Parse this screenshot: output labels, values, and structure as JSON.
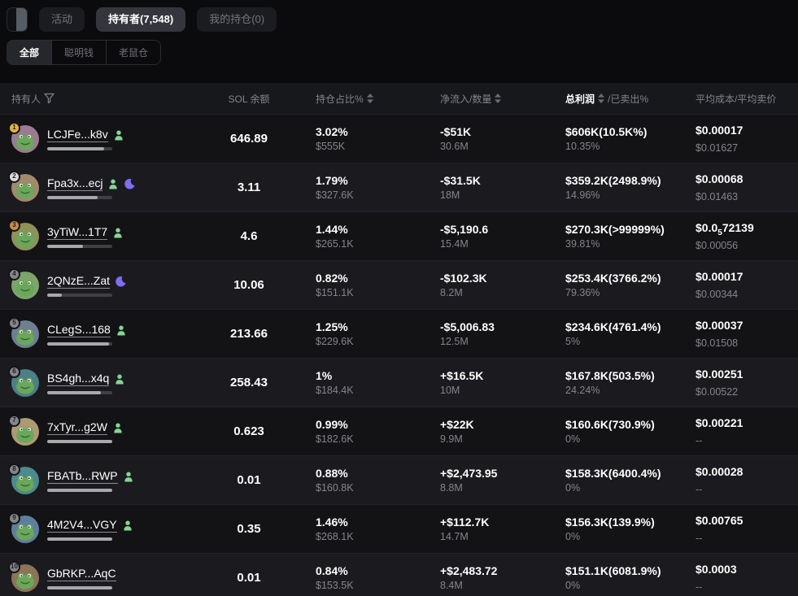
{
  "topbar": {
    "tabs": [
      {
        "label": "活动"
      },
      {
        "label": "持有者(7,548)"
      },
      {
        "label": "我的持仓(0)"
      }
    ]
  },
  "filters": {
    "items": [
      {
        "label": "全部"
      },
      {
        "label": "聪明钱"
      },
      {
        "label": "老鼠仓"
      }
    ]
  },
  "colors": {
    "accent_green": "#7bd38d",
    "accent_red": "#f2506e",
    "rank_gold": "#e8b33c",
    "rank_silver": "#d9dadd",
    "rank_bronze": "#c98a4b"
  },
  "icons": {
    "panel": "panel-toggle-icon",
    "filter": "funnel-icon",
    "sort": "sort-icon",
    "holder_tag": "person-icon",
    "night_tag": "moon-icon"
  },
  "table": {
    "headers": {
      "holder": "持有人",
      "sol_balance": "SOL 余额",
      "position_pct": "持仓占比%",
      "net_inflow": "净流入/数量",
      "profit": "总利润",
      "profit_suffix": "/已卖出%",
      "avg_cost": "平均成本/平均卖价"
    },
    "rows": [
      {
        "rank": "1",
        "address": "LCJFe...k8v",
        "icons": [
          "person-icon"
        ],
        "avatar_color": "#9b7b92",
        "bar": "88%",
        "sol": "646.89",
        "pct": "3.02%",
        "pct_usd": "$555K",
        "net": "-$51K",
        "amount": "30.6M",
        "profit": "$606K(10.5K%)",
        "sold": "10.35%",
        "cost_pre": "$0.00017",
        "cost_sub": "",
        "cost_tail": "",
        "avg_sell": "$0.01627"
      },
      {
        "rank": "2",
        "address": "Fpa3x...ecj",
        "icons": [
          "person-icon",
          "moon-icon"
        ],
        "avatar_color": "#a3886c",
        "bar": "78%",
        "sol": "3.11",
        "pct": "1.79%",
        "pct_usd": "$327.6K",
        "net": "-$31.5K",
        "amount": "18M",
        "profit": "$359.2K(2498.9%)",
        "sold": "14.96%",
        "cost_pre": "$0.00068",
        "cost_sub": "",
        "cost_tail": "",
        "avg_sell": "$0.01463"
      },
      {
        "rank": "3",
        "address": "3yTiW...1T7",
        "icons": [
          "person-icon"
        ],
        "avatar_color": "#8e9158",
        "bar": "55%",
        "sol": "4.6",
        "pct": "1.44%",
        "pct_usd": "$265.1K",
        "net": "-$5,190.6",
        "amount": "15.4M",
        "profit": "$270.3K(>99999%)",
        "sold": "39.81%",
        "cost_pre": "$0.0",
        "cost_sub": "5",
        "cost_tail": "72139",
        "avg_sell": "$0.00056"
      },
      {
        "rank": "4",
        "address": "2QNzE...Zat",
        "icons": [
          "moon-icon"
        ],
        "avatar_color": "#7da46b",
        "bar": "22%",
        "sol": "10.06",
        "pct": "0.82%",
        "pct_usd": "$151.1K",
        "net": "-$102.3K",
        "amount": "8.2M",
        "profit": "$253.4K(3766.2%)",
        "sold": "79.36%",
        "cost_pre": "$0.00017",
        "cost_sub": "",
        "cost_tail": "",
        "avg_sell": "$0.00344"
      },
      {
        "rank": "5",
        "address": "CLegS...168",
        "icons": [
          "person-icon"
        ],
        "avatar_color": "#6f7f92",
        "bar": "95%",
        "sol": "213.66",
        "pct": "1.25%",
        "pct_usd": "$229.6K",
        "net": "-$5,006.83",
        "amount": "12.5M",
        "profit": "$234.6K(4761.4%)",
        "sold": "5%",
        "cost_pre": "$0.00037",
        "cost_sub": "",
        "cost_tail": "",
        "avg_sell": "$0.01508"
      },
      {
        "rank": "6",
        "address": "BS4gh...x4q",
        "icons": [
          "person-icon"
        ],
        "avatar_color": "#4d7f86",
        "bar": "82%",
        "sol": "258.43",
        "pct": "1%",
        "pct_usd": "$184.4K",
        "net": "+$16.5K",
        "amount": "10M",
        "profit": "$167.8K(503.5%)",
        "sold": "24.24%",
        "cost_pre": "$0.00251",
        "cost_sub": "",
        "cost_tail": "",
        "avg_sell": "$0.00522"
      },
      {
        "rank": "7",
        "address": "7xTyr...g2W",
        "icons": [
          "person-icon"
        ],
        "avatar_color": "#ad9a74",
        "bar": "100%",
        "sol": "0.623",
        "pct": "0.99%",
        "pct_usd": "$182.6K",
        "net": "+$22K",
        "amount": "9.9M",
        "profit": "$160.6K(730.9%)",
        "sold": "0%",
        "cost_pre": "$0.00221",
        "cost_sub": "",
        "cost_tail": "",
        "avg_sell": "--"
      },
      {
        "rank": "8",
        "address": "FBATb...RWP",
        "icons": [
          "person-icon"
        ],
        "avatar_color": "#4c8b8d",
        "bar": "100%",
        "sol": "0.01",
        "pct": "0.88%",
        "pct_usd": "$160.8K",
        "net": "+$2,473.95",
        "amount": "8.8M",
        "profit": "$158.3K(6400.4%)",
        "sold": "0%",
        "cost_pre": "$0.00028",
        "cost_sub": "",
        "cost_tail": "",
        "avg_sell": "--"
      },
      {
        "rank": "9",
        "address": "4M2V4...VGY",
        "icons": [
          "person-icon"
        ],
        "avatar_color": "#5e7f9c",
        "bar": "100%",
        "sol": "0.35",
        "pct": "1.46%",
        "pct_usd": "$268.1K",
        "net": "+$112.7K",
        "amount": "14.7M",
        "profit": "$156.3K(139.9%)",
        "sold": "0%",
        "cost_pre": "$0.00765",
        "cost_sub": "",
        "cost_tail": "",
        "avg_sell": "--"
      },
      {
        "rank": "10",
        "address": "GbRKP...AqC",
        "icons": [],
        "avatar_color": "#8b7458",
        "bar": "100%",
        "sol": "0.01",
        "pct": "0.84%",
        "pct_usd": "$153.5K",
        "net": "+$2,483.72",
        "amount": "8.4M",
        "profit": "$151.1K(6081.9%)",
        "sold": "0%",
        "cost_pre": "$0.0003",
        "cost_sub": "",
        "cost_tail": "",
        "avg_sell": "--"
      }
    ]
  }
}
